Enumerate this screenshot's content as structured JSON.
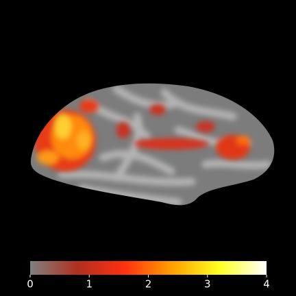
{
  "chart_data": {
    "type": "surface",
    "colormap": [
      "#808080",
      "#b03020",
      "#ff3010",
      "#ffa000",
      "#ffff20",
      "#ffffff"
    ],
    "xlim": [
      0,
      4
    ],
    "xticks": [
      0,
      1,
      2,
      3,
      4
    ]
  }
}
